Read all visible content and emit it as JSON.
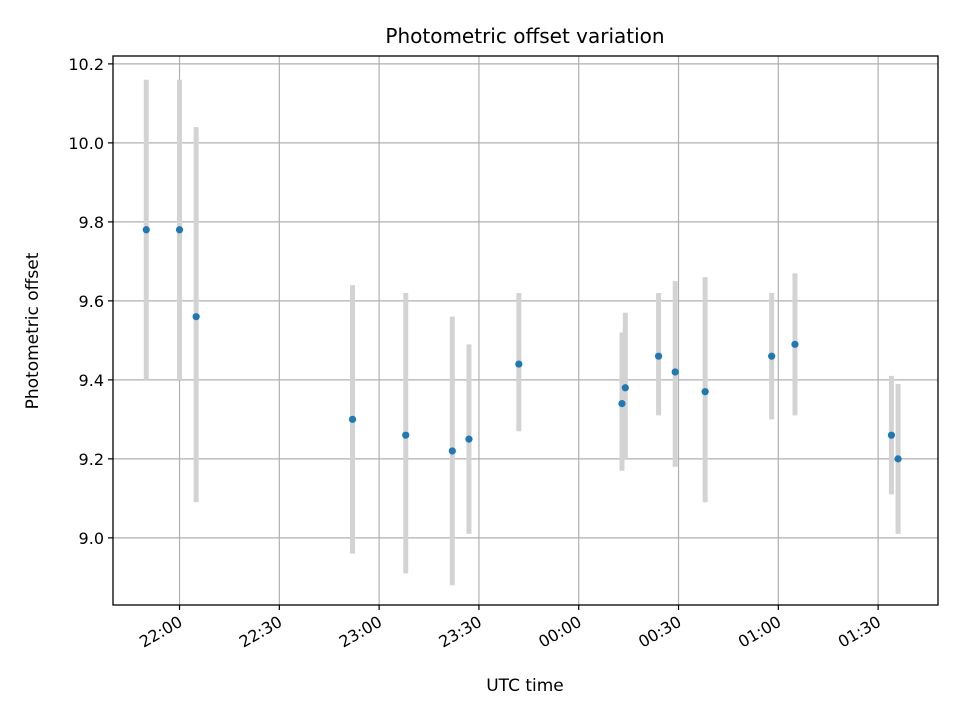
{
  "chart_data": {
    "type": "scatter",
    "title": "Photometric offset variation",
    "xlabel": "UTC time",
    "ylabel": "Photometric offset",
    "grid": true,
    "xlim": [
      "21:40",
      "01:48"
    ],
    "ylim": [
      8.83,
      10.22
    ],
    "x_tick_labels": [
      "22:00",
      "22:30",
      "23:00",
      "23:30",
      "00:00",
      "00:30",
      "01:00",
      "01:30"
    ],
    "y_tick_labels": [
      "9.0",
      "9.2",
      "9.4",
      "9.6",
      "9.8",
      "10.0",
      "10.2"
    ],
    "point_color": "#1f77b4",
    "errorbar_color": "#d3d3d3",
    "points": [
      {
        "x": "21:50",
        "y": 9.78,
        "ymin": 9.4,
        "ymax": 10.16
      },
      {
        "x": "22:00",
        "y": 9.78,
        "ymin": 9.4,
        "ymax": 10.16
      },
      {
        "x": "22:05",
        "y": 9.56,
        "ymin": 9.09,
        "ymax": 10.04
      },
      {
        "x": "22:52",
        "y": 9.3,
        "ymin": 8.96,
        "ymax": 9.64
      },
      {
        "x": "23:08",
        "y": 9.26,
        "ymin": 8.91,
        "ymax": 9.62
      },
      {
        "x": "23:22",
        "y": 9.22,
        "ymin": 8.88,
        "ymax": 9.56
      },
      {
        "x": "23:27",
        "y": 9.25,
        "ymin": 9.01,
        "ymax": 9.49
      },
      {
        "x": "23:42",
        "y": 9.44,
        "ymin": 9.27,
        "ymax": 9.62
      },
      {
        "x": "00:13",
        "y": 9.34,
        "ymin": 9.17,
        "ymax": 9.52
      },
      {
        "x": "00:14",
        "y": 9.38,
        "ymin": 9.2,
        "ymax": 9.57
      },
      {
        "x": "00:24",
        "y": 9.46,
        "ymin": 9.31,
        "ymax": 9.62
      },
      {
        "x": "00:29",
        "y": 9.42,
        "ymin": 9.18,
        "ymax": 9.65
      },
      {
        "x": "00:38",
        "y": 9.37,
        "ymin": 9.09,
        "ymax": 9.66
      },
      {
        "x": "00:58",
        "y": 9.46,
        "ymin": 9.3,
        "ymax": 9.62
      },
      {
        "x": "01:05",
        "y": 9.49,
        "ymin": 9.31,
        "ymax": 9.67
      },
      {
        "x": "01:34",
        "y": 9.26,
        "ymin": 9.11,
        "ymax": 9.41
      },
      {
        "x": "01:36",
        "y": 9.2,
        "ymin": 9.01,
        "ymax": 9.39
      }
    ]
  }
}
